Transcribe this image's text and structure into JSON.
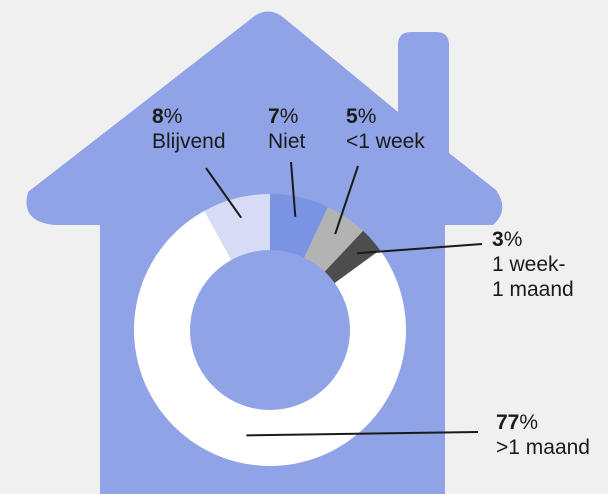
{
  "colors": {
    "background": "#f0f0f0",
    "house": "#8fa3e6",
    "ink": "#1a1a1a"
  },
  "icon": "house-icon",
  "chart_data": {
    "type": "donut",
    "unit": "%",
    "slices": [
      {
        "label": "Niet",
        "value": 7,
        "color": "#7b93e3",
        "lines": [
          "Niet"
        ]
      },
      {
        "label": "<1 week",
        "value": 5,
        "color": "#b3b3b3",
        "lines": [
          "<1 week"
        ]
      },
      {
        "label": "1 week- 1 maand",
        "value": 3,
        "color": "#4d4d4d",
        "lines": [
          "1 week-",
          "1 maand"
        ]
      },
      {
        "label": ">1 maand",
        "value": 77,
        "color": "#ffffff",
        "lines": [
          ">1 maand"
        ]
      },
      {
        "label": "Blijvend",
        "value": 8,
        "color": "#d5dcf4",
        "lines": [
          "Blijvend"
        ]
      }
    ]
  }
}
